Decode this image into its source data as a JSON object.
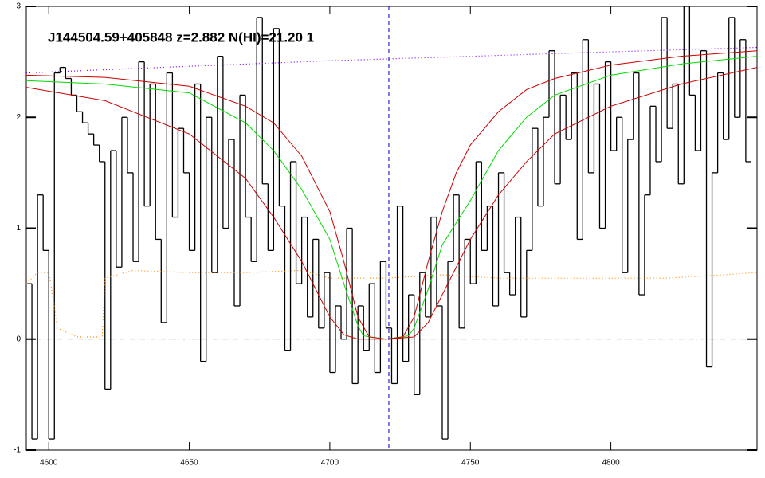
{
  "chart_data": {
    "type": "line",
    "title": "J144504.59+405848 z=2.882 N(HI)=21.20 1",
    "xlim": [
      4592,
      4852
    ],
    "ylim": [
      -1,
      3
    ],
    "xticks": [
      4600,
      4650,
      4700,
      4750,
      4800
    ],
    "yticks": [
      -1,
      0,
      1,
      2,
      3
    ],
    "hlines": [
      {
        "y": 0,
        "color": "#aaaaaa",
        "linestyle": "dashdot"
      }
    ],
    "vlines": [
      {
        "x": 4721,
        "color": "#0000cc",
        "linestyle": "dashed"
      }
    ],
    "series": [
      {
        "color": "#000000",
        "drawstyle": "steps-mid",
        "linestyle": "solid",
        "x": [
          4593,
          4595,
          4597,
          4599,
          4601,
          4603,
          4605,
          4607,
          4609,
          4611,
          4613,
          4615,
          4617,
          4619,
          4621,
          4623,
          4625,
          4627,
          4629,
          4631,
          4633,
          4635,
          4637,
          4639,
          4641,
          4643,
          4645,
          4647,
          4649,
          4651,
          4653,
          4655,
          4657,
          4659,
          4661,
          4663,
          4665,
          4667,
          4669,
          4671,
          4673,
          4675,
          4677,
          4679,
          4681,
          4683,
          4685,
          4687,
          4689,
          4691,
          4693,
          4695,
          4697,
          4699,
          4701,
          4703,
          4705,
          4707,
          4709,
          4711,
          4713,
          4715,
          4717,
          4719,
          4721,
          4723,
          4725,
          4727,
          4729,
          4731,
          4733,
          4735,
          4737,
          4739,
          4741,
          4743,
          4745,
          4747,
          4749,
          4751,
          4753,
          4755,
          4757,
          4759,
          4761,
          4763,
          4765,
          4767,
          4769,
          4771,
          4773,
          4775,
          4777,
          4779,
          4781,
          4783,
          4785,
          4787,
          4789,
          4791,
          4793,
          4795,
          4797,
          4799,
          4801,
          4803,
          4805,
          4807,
          4809,
          4811,
          4813,
          4815,
          4817,
          4819,
          4821,
          4823,
          4825,
          4827,
          4829,
          4831,
          4833,
          4835,
          4837,
          4839,
          4841,
          4843,
          4845,
          4847,
          4849
        ],
        "values": [
          0.5,
          -0.9,
          1.3,
          0.8,
          -0.9,
          2.4,
          2.45,
          2.35,
          2.2,
          2.05,
          1.95,
          1.85,
          1.75,
          1.6,
          -0.45,
          1.7,
          0.65,
          2.0,
          1.5,
          0.7,
          2.5,
          1.2,
          2.3,
          0.9,
          0.15,
          2.4,
          1.1,
          1.9,
          1.5,
          0.8,
          2.3,
          -0.2,
          2.0,
          0.6,
          2.55,
          1.0,
          1.8,
          0.3,
          2.2,
          1.1,
          0.7,
          2.9,
          1.4,
          0.8,
          2.8,
          1.2,
          -0.1,
          1.6,
          0.5,
          1.1,
          0.2,
          0.9,
          0.1,
          0.6,
          -0.3,
          0.3,
          0.0,
          1.0,
          -0.4,
          0.3,
          -0.1,
          0.5,
          -0.3,
          0.7,
          0.1,
          -0.4,
          1.2,
          -0.2,
          0.4,
          -0.5,
          0.6,
          0.2,
          1.1,
          0.3,
          -0.9,
          0.7,
          1.3,
          0.1,
          0.9,
          0.5,
          1.6,
          0.8,
          1.2,
          0.3,
          1.5,
          0.6,
          0.4,
          1.1,
          0.2,
          0.8,
          1.9,
          1.2,
          2.0,
          2.6,
          1.4,
          2.2,
          1.8,
          2.4,
          0.9,
          2.7,
          1.5,
          2.3,
          1.0,
          2.5,
          1.7,
          2.0,
          0.6,
          1.8,
          2.4,
          0.4,
          1.3,
          2.1,
          1.6,
          2.9,
          1.9,
          2.3,
          1.4,
          3.0,
          2.2,
          1.7,
          2.6,
          -0.25,
          1.5,
          2.4,
          1.8,
          2.9,
          2.0,
          2.7,
          1.6
        ]
      },
      {
        "color": "#ff8c00",
        "drawstyle": "line",
        "linestyle": "dotted",
        "x": [
          4592,
          4596,
          4600,
          4602,
          4603,
          4610,
          4619,
          4620,
          4630,
          4650,
          4670,
          4690,
          4700,
          4720,
          4740,
          4760,
          4780,
          4800,
          4820,
          4840,
          4852
        ],
        "values": [
          0.5,
          0.6,
          0.6,
          0.3,
          0.1,
          0.02,
          0.02,
          0.55,
          0.62,
          0.6,
          0.6,
          0.62,
          0.55,
          0.55,
          0.58,
          0.55,
          0.55,
          0.55,
          0.55,
          0.58,
          0.6
        ]
      },
      {
        "color": "#8000ff",
        "drawstyle": "line",
        "linestyle": "dotted",
        "x": [
          4592,
          4650,
          4700,
          4750,
          4800,
          4852
        ],
        "values": [
          2.4,
          2.46,
          2.51,
          2.55,
          2.59,
          2.63
        ]
      },
      {
        "color": "#00dd00",
        "drawstyle": "line",
        "linestyle": "solid",
        "x": [
          4592,
          4620,
          4650,
          4670,
          4680,
          4690,
          4700,
          4705,
          4710,
          4712,
          4720,
          4728,
          4730,
          4735,
          4740,
          4745,
          4750,
          4760,
          4770,
          4780,
          4800,
          4825,
          4852
        ],
        "values": [
          2.33,
          2.3,
          2.22,
          1.95,
          1.7,
          1.35,
          0.9,
          0.5,
          0.12,
          0.03,
          0,
          0.03,
          0.1,
          0.45,
          0.85,
          1.05,
          1.25,
          1.7,
          2.0,
          2.2,
          2.38,
          2.48,
          2.55
        ]
      },
      {
        "color": "#cc0000",
        "drawstyle": "line",
        "linestyle": "solid",
        "x": [
          4592,
          4620,
          4650,
          4670,
          4680,
          4690,
          4700,
          4705,
          4710,
          4714,
          4720,
          4726,
          4730,
          4735,
          4740,
          4745,
          4750,
          4760,
          4770,
          4780,
          4800,
          4825,
          4852
        ],
        "values": [
          2.38,
          2.36,
          2.28,
          2.1,
          1.95,
          1.65,
          1.15,
          0.7,
          0.2,
          0.02,
          0,
          0.02,
          0.2,
          0.7,
          1.15,
          1.5,
          1.75,
          2.05,
          2.25,
          2.35,
          2.47,
          2.55,
          2.6
        ]
      },
      {
        "color": "#cc0000",
        "drawstyle": "line",
        "linestyle": "solid",
        "x": [
          4592,
          4620,
          4650,
          4670,
          4680,
          4690,
          4695,
          4700,
          4705,
          4710,
          4720,
          4730,
          4735,
          4740,
          4745,
          4750,
          4760,
          4770,
          4780,
          4800,
          4825,
          4852
        ],
        "values": [
          2.27,
          2.15,
          1.85,
          1.45,
          1.1,
          0.7,
          0.45,
          0.2,
          0.04,
          0,
          0,
          0.02,
          0.15,
          0.4,
          0.65,
          0.9,
          1.3,
          1.6,
          1.85,
          2.1,
          2.3,
          2.45
        ]
      }
    ]
  }
}
